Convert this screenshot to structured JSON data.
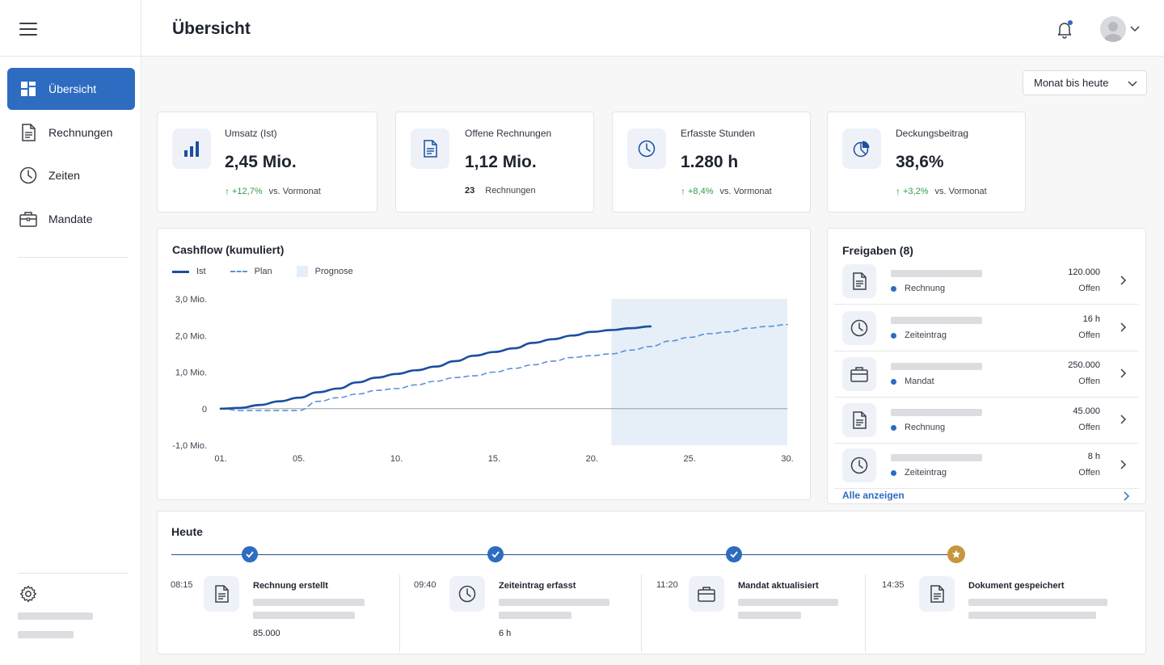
{
  "app": {
    "page_title": "Übersicht",
    "accent_color": "#2d6cc0",
    "positive_color": "#2e9c48"
  },
  "sidebar": {
    "items": [
      {
        "label": "Übersicht",
        "icon": "dashboard-icon",
        "active": true
      },
      {
        "label": "Rechnungen",
        "icon": "document-icon",
        "active": false
      },
      {
        "label": "Zeiten",
        "icon": "clock-icon",
        "active": false
      },
      {
        "label": "Mandate",
        "icon": "briefcase-icon",
        "active": false
      }
    ],
    "settings_icon": "gear-icon"
  },
  "header": {
    "notification_icon": "bell-icon",
    "user_icon": "avatar"
  },
  "filters": {
    "period": "Monat bis heute"
  },
  "kpis": [
    {
      "label": "Umsatz (Ist)",
      "value": "2,45 Mio.",
      "delta": "+12,7%",
      "ref": "vs. Vormonat",
      "icon": "bar-chart-icon"
    },
    {
      "label": "Offene Rechnungen",
      "value": "1,12 Mio.",
      "count": "23",
      "count_label": "Rechnungen",
      "icon": "document-icon"
    },
    {
      "label": "Erfasste Stunden",
      "value": "1.280 h",
      "delta": "+8,4%",
      "ref": "vs. Vormonat",
      "icon": "clock-icon"
    },
    {
      "label": "Deckungsbeitrag",
      "value": "38,6%",
      "delta": "+3,2%",
      "ref": "vs. Vormonat",
      "icon": "pie-chart-icon"
    }
  ],
  "cashflow": {
    "title": "Cashflow (kumuliert)",
    "legend": [
      "Ist",
      "Plan",
      "Prognose"
    ]
  },
  "chart_data": {
    "type": "line",
    "title": "Cashflow (kumuliert)",
    "xlabel": "",
    "ylabel": "",
    "x_ticks": [
      "01.",
      "05.",
      "10.",
      "15.",
      "20.",
      "25.",
      "30."
    ],
    "y_ticks": [
      "3,0 Mio.",
      "2,0 Mio.",
      "1,0 Mio.",
      "0",
      "-1,0 Mio."
    ],
    "xlim": [
      1,
      30
    ],
    "ylim": [
      -1.0,
      3.0
    ],
    "forecast_range": [
      21,
      30
    ],
    "series": [
      {
        "name": "Ist",
        "style": "solid",
        "color": "#1a4fa0",
        "x": [
          1,
          2,
          3,
          4,
          5,
          6,
          7,
          8,
          9,
          10,
          11,
          12,
          13,
          14,
          15,
          16,
          17,
          18,
          19,
          20,
          21,
          22,
          23
        ],
        "y": [
          0.0,
          0.02,
          0.1,
          0.2,
          0.3,
          0.45,
          0.55,
          0.72,
          0.85,
          0.95,
          1.05,
          1.15,
          1.3,
          1.45,
          1.55,
          1.65,
          1.8,
          1.9,
          2.0,
          2.1,
          2.15,
          2.2,
          2.25
        ]
      },
      {
        "name": "Plan",
        "style": "dashed",
        "color": "#5b93d6",
        "x": [
          1,
          2,
          3,
          4,
          5,
          6,
          7,
          8,
          9,
          10,
          11,
          12,
          13,
          14,
          15,
          16,
          17,
          18,
          19,
          20,
          21,
          22,
          23,
          24,
          25,
          26,
          27,
          28,
          29,
          30
        ],
        "y": [
          0.0,
          -0.05,
          -0.05,
          -0.05,
          -0.05,
          0.2,
          0.3,
          0.4,
          0.5,
          0.55,
          0.65,
          0.75,
          0.85,
          0.9,
          1.0,
          1.1,
          1.2,
          1.3,
          1.4,
          1.45,
          1.5,
          1.6,
          1.7,
          1.85,
          1.95,
          2.05,
          2.1,
          2.2,
          2.25,
          2.3
        ]
      }
    ],
    "grid": false,
    "legend_position": "top-left"
  },
  "approvals": {
    "title": "Freigaben (8)",
    "rows": [
      {
        "type": "Rechnung",
        "amount": "120.000",
        "status": "Offen",
        "icon": "document-icon"
      },
      {
        "type": "Zeiteintrag",
        "amount": "16 h",
        "status": "Offen",
        "icon": "clock-icon"
      },
      {
        "type": "Mandat",
        "amount": "250.000",
        "status": "Offen",
        "icon": "briefcase-icon"
      },
      {
        "type": "Rechnung",
        "amount": "45.000",
        "status": "Offen",
        "icon": "document-icon"
      },
      {
        "type": "Zeiteintrag",
        "amount": "8 h",
        "status": "Offen",
        "icon": "clock-icon"
      }
    ],
    "show_all": "Alle anzeigen"
  },
  "today": {
    "title": "Heute",
    "events": [
      {
        "time": "08:15",
        "title": "Rechnung erstellt",
        "amount": "85.000",
        "icon": "document-icon"
      },
      {
        "time": "09:40",
        "title": "Zeiteintrag erfasst",
        "amount": "6 h",
        "icon": "clock-icon"
      },
      {
        "time": "11:20",
        "title": "Mandat aktualisiert",
        "amount": "",
        "icon": "briefcase-icon"
      },
      {
        "time": "14:35",
        "title": "Dokument gespeichert",
        "amount": "",
        "icon": "document-icon"
      }
    ]
  }
}
